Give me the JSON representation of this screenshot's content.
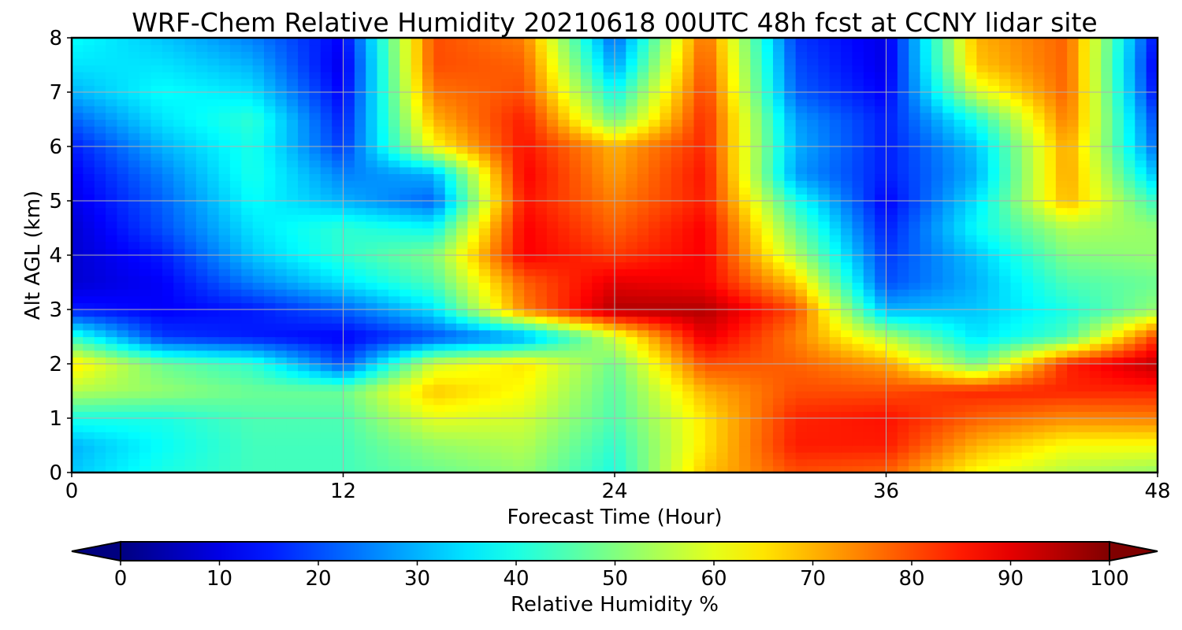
{
  "chart_data": {
    "type": "heatmap",
    "title": "WRF-Chem Relative Humidity 20210618 00UTC 48h fcst at CCNY lidar site",
    "xlabel": "Forecast Time (Hour)",
    "ylabel": "Alt AGL (km)",
    "xlim": [
      0,
      48
    ],
    "ylim": [
      0,
      8
    ],
    "x_ticks": [
      0,
      12,
      24,
      36,
      48
    ],
    "y_ticks": [
      0,
      1,
      2,
      3,
      4,
      5,
      6,
      7,
      8
    ],
    "grid": true,
    "colorbar": {
      "label": "Relative Humidity %",
      "colormap": "jet",
      "range": [
        0,
        100
      ],
      "ticks": [
        0,
        10,
        20,
        30,
        40,
        50,
        60,
        70,
        80,
        90,
        100
      ],
      "extend": "both",
      "placement": "bottom"
    },
    "x": [
      0,
      4,
      8,
      12,
      16,
      20,
      24,
      28,
      32,
      36,
      40,
      44,
      48
    ],
    "y": [
      0,
      0.5,
      1,
      1.5,
      2,
      2.5,
      3,
      3.5,
      4,
      4.5,
      5,
      5.5,
      6,
      6.5,
      7,
      7.5,
      8
    ],
    "values": [
      [
        32,
        40,
        44,
        44,
        48,
        52,
        40,
        68,
        80,
        78,
        62,
        55,
        52
      ],
      [
        30,
        38,
        44,
        44,
        52,
        55,
        42,
        65,
        85,
        85,
        70,
        62,
        62
      ],
      [
        40,
        40,
        45,
        45,
        60,
        58,
        45,
        65,
        84,
        86,
        78,
        74,
        75
      ],
      [
        55,
        52,
        48,
        48,
        68,
        62,
        46,
        70,
        80,
        80,
        84,
        84,
        84
      ],
      [
        65,
        48,
        42,
        20,
        58,
        65,
        48,
        80,
        78,
        72,
        48,
        84,
        94
      ],
      [
        42,
        18,
        15,
        12,
        20,
        28,
        58,
        90,
        75,
        55,
        35,
        45,
        82
      ],
      [
        15,
        12,
        15,
        22,
        35,
        75,
        95,
        95,
        80,
        30,
        32,
        40,
        52
      ],
      [
        8,
        12,
        25,
        35,
        45,
        78,
        90,
        88,
        68,
        20,
        30,
        45,
        48
      ],
      [
        8,
        15,
        32,
        42,
        50,
        88,
        82,
        88,
        55,
        18,
        32,
        50,
        52
      ],
      [
        8,
        20,
        35,
        42,
        38,
        88,
        78,
        88,
        48,
        15,
        38,
        55,
        52
      ],
      [
        10,
        22,
        38,
        30,
        22,
        86,
        75,
        85,
        40,
        12,
        35,
        70,
        42
      ],
      [
        12,
        25,
        40,
        25,
        30,
        88,
        72,
        86,
        28,
        15,
        30,
        72,
        30
      ],
      [
        15,
        30,
        40,
        18,
        62,
        86,
        70,
        84,
        30,
        15,
        32,
        72,
        22
      ],
      [
        22,
        35,
        42,
        15,
        70,
        85,
        48,
        84,
        28,
        15,
        40,
        76,
        18
      ],
      [
        30,
        38,
        35,
        12,
        76,
        80,
        38,
        82,
        22,
        12,
        58,
        78,
        12
      ],
      [
        35,
        35,
        30,
        10,
        80,
        78,
        28,
        80,
        20,
        10,
        68,
        78,
        10
      ],
      [
        38,
        32,
        25,
        12,
        80,
        75,
        22,
        78,
        18,
        10,
        70,
        78,
        12
      ]
    ]
  }
}
